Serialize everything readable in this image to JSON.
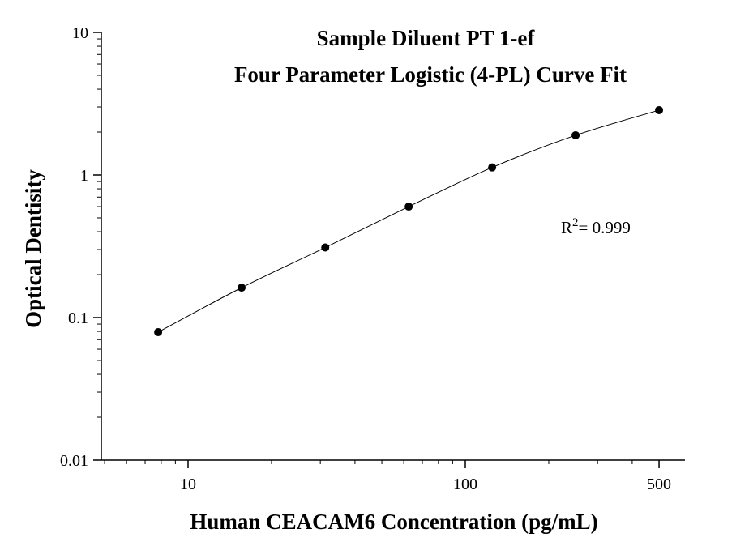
{
  "chart_data": {
    "type": "scatter",
    "title_lines": [
      "Sample Diluent PT 1-ef",
      "Four Parameter Logistic (4-PL) Curve Fit"
    ],
    "xlabel": "Human CEACAM6 Concentration (pg/mL)",
    "ylabel": "Optical Dentisity",
    "x_scale": "log",
    "y_scale": "log",
    "xlim": [
      5,
      550
    ],
    "ylim": [
      0.01,
      10
    ],
    "x_ticks": [
      {
        "value": 10,
        "label": "10"
      },
      {
        "value": 100,
        "label": "100"
      },
      {
        "value": 500,
        "label": "500"
      }
    ],
    "y_ticks": [
      {
        "value": 0.01,
        "label": "0.01"
      },
      {
        "value": 0.1,
        "label": "0.1"
      },
      {
        "value": 1,
        "label": "1"
      },
      {
        "value": 10,
        "label": "10"
      }
    ],
    "annotation": {
      "prefix": "R",
      "sup": "2",
      "suffix": "= 0.999"
    },
    "points": {
      "x": [
        7.8,
        15.6,
        31.25,
        62.5,
        125,
        250,
        500
      ],
      "y": [
        0.079,
        0.162,
        0.31,
        0.6,
        1.13,
        1.9,
        2.85
      ]
    },
    "grid": false,
    "legend": "none"
  }
}
